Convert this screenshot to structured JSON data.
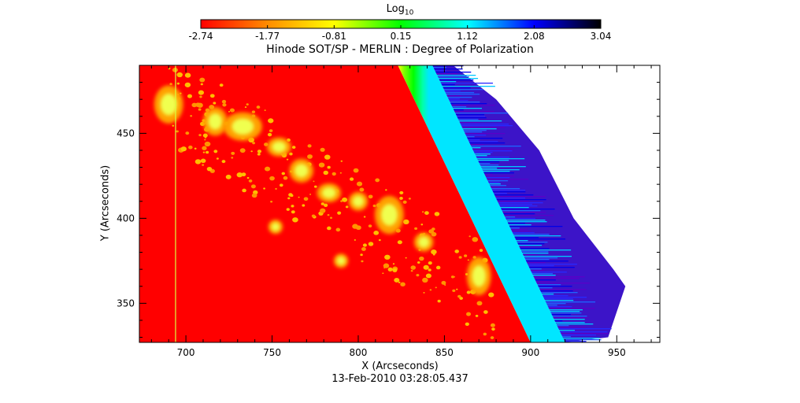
{
  "chart_data": {
    "type": "heatmap",
    "title": "Hinode SOT/SP - MERLIN : Degree of Polarization",
    "xlabel": "X (Arcseconds)",
    "ylabel": "Y (Arcseconds)",
    "footer": "13-Feb-2010 03:28:05.437",
    "xlim": [
      673,
      975
    ],
    "ylim": [
      327,
      490
    ],
    "xticks": [
      700,
      750,
      800,
      850,
      900,
      950
    ],
    "yticks": [
      350,
      400,
      450
    ],
    "grid": false,
    "colorbar": {
      "label": "Log",
      "label_subscript": "10",
      "colormap": "rainbow",
      "min": -2.74,
      "max": 3.04,
      "ticks": [
        "-2.74",
        "-1.77",
        "-0.81",
        "0.15",
        "1.12",
        "2.08",
        "3.04"
      ],
      "colors": [
        "#ff0000",
        "#ff8c00",
        "#ffff00",
        "#00ff00",
        "#00ffff",
        "#0000ff",
        "#000000"
      ]
    },
    "features": {
      "limb_line": [
        [
          823,
          490
        ],
        [
          900,
          327
        ]
      ],
      "limb_gradient_width": 20,
      "noise_edge": [
        [
          855,
          490
        ],
        [
          880,
          470
        ],
        [
          905,
          440
        ],
        [
          925,
          400
        ],
        [
          948,
          370
        ],
        [
          955,
          360
        ],
        [
          945,
          330
        ]
      ],
      "vertical_line_x": 694,
      "bright_spots": [
        {
          "x": 690,
          "y": 467,
          "rx": 6,
          "ry": 8
        },
        {
          "x": 717,
          "y": 457,
          "rx": 5,
          "ry": 6
        },
        {
          "x": 733,
          "y": 454,
          "rx": 8,
          "ry": 6
        },
        {
          "x": 754,
          "y": 442,
          "rx": 5,
          "ry": 4
        },
        {
          "x": 767,
          "y": 428,
          "rx": 5,
          "ry": 5
        },
        {
          "x": 783,
          "y": 415,
          "rx": 5,
          "ry": 4
        },
        {
          "x": 800,
          "y": 410,
          "rx": 4,
          "ry": 4
        },
        {
          "x": 818,
          "y": 402,
          "rx": 6,
          "ry": 8
        },
        {
          "x": 838,
          "y": 386,
          "rx": 4,
          "ry": 4
        },
        {
          "x": 870,
          "y": 366,
          "rx": 5,
          "ry": 8
        },
        {
          "x": 752,
          "y": 395,
          "rx": 3,
          "ry": 3
        },
        {
          "x": 790,
          "y": 375,
          "rx": 3,
          "ry": 3
        }
      ]
    }
  }
}
